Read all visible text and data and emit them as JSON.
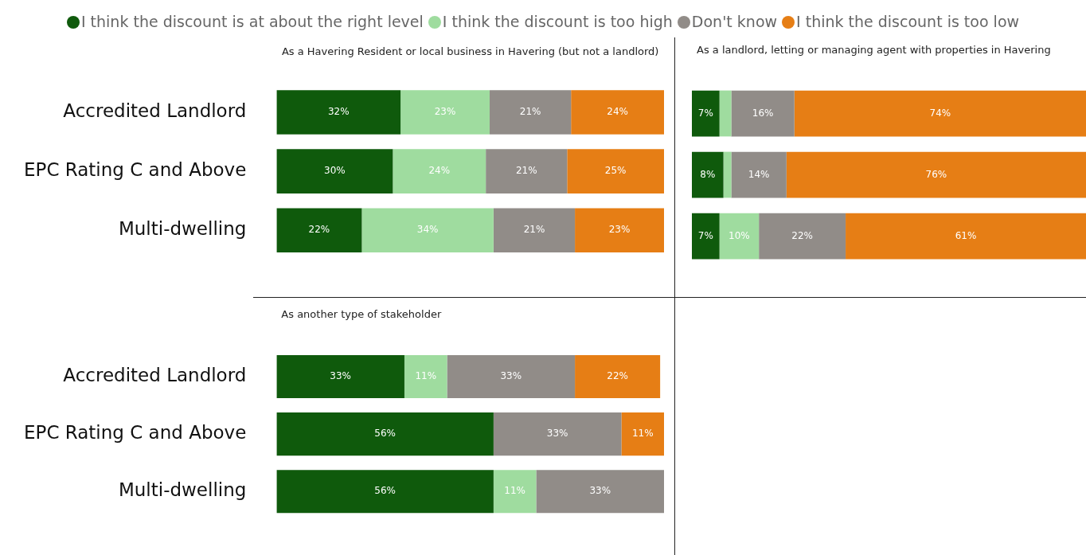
{
  "chart_data": [
    {
      "type": "bar",
      "orientation": "horizontal",
      "stacked": true,
      "title": "As a Havering Resident or local business in Havering (but not a landlord)",
      "categories": [
        "Accredited Landlord",
        "EPC Rating C and Above",
        "Multi-dwelling"
      ],
      "tick_labels": "y",
      "legend": "top",
      "series": [
        {
          "name": "I think the discount is at about the right level",
          "color": "#0f5a0c",
          "values": [
            32,
            30,
            22
          ],
          "value_labels": [
            "32%",
            "30%",
            "22%"
          ]
        },
        {
          "name": "I think the discount is too high",
          "color": "#9fdc9f",
          "values": [
            23,
            24,
            34
          ],
          "value_labels": [
            "23%",
            "24%",
            "34%"
          ]
        },
        {
          "name": "Don't know",
          "color": "#918c88",
          "values": [
            21,
            21,
            21
          ],
          "value_labels": [
            "21%",
            "21%",
            "21%"
          ]
        },
        {
          "name": "I think the discount is too low",
          "color": "#e67e15",
          "values": [
            24,
            25,
            23
          ],
          "value_labels": [
            "24%",
            "25%",
            "23%"
          ]
        }
      ]
    },
    {
      "type": "bar",
      "orientation": "horizontal",
      "stacked": true,
      "title": "As a landlord, letting or managing agent with properties in Havering",
      "categories": [
        null,
        null,
        null
      ],
      "tick_labels": false,
      "series": [
        {
          "color": "#0f5a0c",
          "values": [
            7,
            8,
            7
          ],
          "value_labels": [
            "7%",
            "8%",
            "7%"
          ]
        },
        {
          "color": "#9fdc9f",
          "values": [
            3,
            2,
            10
          ],
          "value_labels": [
            null,
            null,
            "10%"
          ]
        },
        {
          "color": "#918c88",
          "values": [
            16,
            14,
            22
          ],
          "value_labels": [
            "16%",
            "14%",
            "22%"
          ]
        },
        {
          "color": "#e67e15",
          "values": [
            74,
            76,
            61
          ],
          "value_labels": [
            "74%",
            "76%",
            "61%"
          ]
        }
      ]
    },
    {
      "type": "bar",
      "orientation": "horizontal",
      "stacked": true,
      "title": "As another type of stakeholder",
      "categories": [
        "Accredited Landlord",
        "EPC Rating C and Above",
        "Multi-dwelling"
      ],
      "tick_labels": "y",
      "series": [
        {
          "color": "#0f5a0c",
          "values": [
            33,
            56,
            56
          ],
          "value_labels": [
            "33%",
            "56%",
            "56%"
          ]
        },
        {
          "color": "#9fdc9f",
          "values": [
            11,
            null,
            11
          ],
          "value_labels": [
            "11%",
            null,
            "11%"
          ]
        },
        {
          "color": "#918c88",
          "values": [
            33,
            33,
            33
          ],
          "value_labels": [
            "33%",
            "33%",
            "33%"
          ]
        },
        {
          "color": "#e67e15",
          "values": [
            22,
            11,
            null
          ],
          "value_labels": [
            "22%",
            "11%",
            null
          ]
        }
      ]
    }
  ]
}
